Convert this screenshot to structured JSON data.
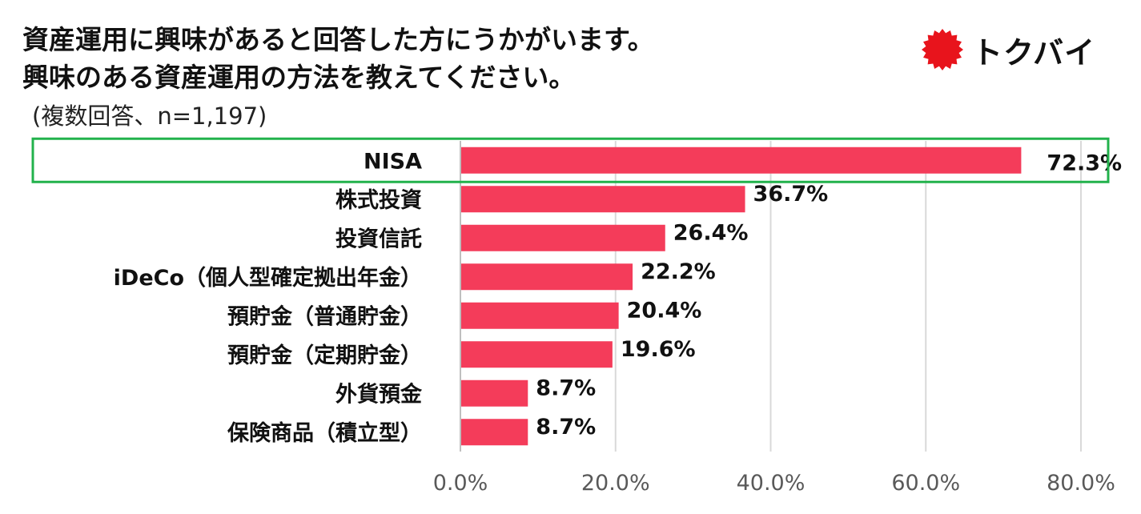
{
  "title": {
    "line1": "資産運用に興味があると回答した方にうかがいます。",
    "line2": "興味のある資産運用の方法を教えてください。"
  },
  "note": "(複数回答、n=1,197)",
  "logo": {
    "text": "トクバイ",
    "icon": "sun-badge-icon",
    "color": "#e8141c"
  },
  "colors": {
    "bar": "#f43c5a",
    "highlight": "#22b24c",
    "grid": "#d9d9d9",
    "axis": "#bfbfbf"
  },
  "chart_data": {
    "type": "bar",
    "orientation": "horizontal",
    "categories": [
      "NISA",
      "株式投資",
      "投資信託",
      "iDeCo（個人型確定拠出年金）",
      "預貯金（普通貯金）",
      "預貯金（定期貯金）",
      "外貨預金",
      "保険商品（積立型）"
    ],
    "values": [
      72.3,
      36.7,
      26.4,
      22.2,
      20.4,
      19.6,
      8.7,
      8.7
    ],
    "data_labels": [
      "72.3%",
      "36.7%",
      "26.4%",
      "22.2%",
      "20.4%",
      "19.6%",
      "8.7%",
      "8.7%"
    ],
    "xlim": [
      0,
      80
    ],
    "xticks": [
      0,
      20,
      40,
      60,
      80
    ],
    "xtick_labels": [
      "0.0%",
      "20.0%",
      "40.0%",
      "60.0%",
      "80.0%"
    ],
    "highlighted_category": "NISA",
    "grid": true,
    "legend": "none"
  }
}
